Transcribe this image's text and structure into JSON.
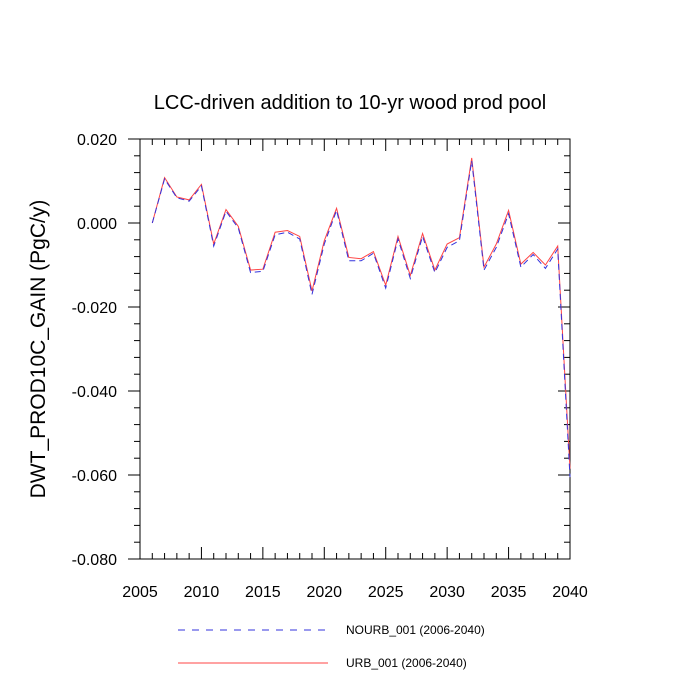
{
  "chart_data": {
    "type": "line",
    "title": "LCC-driven addition to 10-yr wood prod pool",
    "xlabel": "",
    "ylabel": "DWT_PROD10C_GAIN  (PgC/y)",
    "xlim": [
      2005,
      2040
    ],
    "ylim": [
      -0.08,
      0.02
    ],
    "x_ticks": [
      2005,
      2010,
      2015,
      2020,
      2025,
      2030,
      2035,
      2040
    ],
    "y_ticks": [
      -0.08,
      -0.06,
      -0.04,
      -0.02,
      0.0,
      0.02
    ],
    "x_tick_labels": [
      "2005",
      "2010",
      "2015",
      "2020",
      "2025",
      "2030",
      "2035",
      "2040"
    ],
    "y_tick_labels": [
      "-0.080",
      "-0.060",
      "-0.040",
      "-0.020",
      "0.000",
      "0.020"
    ],
    "grid": false,
    "legend_position": "bottom",
    "x": [
      2006,
      2007,
      2008,
      2009,
      2010,
      2011,
      2012,
      2013,
      2014,
      2015,
      2016,
      2017,
      2018,
      2019,
      2020,
      2021,
      2022,
      2023,
      2024,
      2025,
      2026,
      2027,
      2028,
      2029,
      2030,
      2031,
      2032,
      2033,
      2034,
      2035,
      2036,
      2037,
      2038,
      2039,
      2040
    ],
    "series": [
      {
        "name": "NOURB_001 (2006-2040)",
        "color": "#3333dd",
        "dash": "dashed",
        "values": [
          0.0,
          0.0105,
          0.006,
          0.0052,
          0.0088,
          -0.0055,
          0.0028,
          -0.0012,
          -0.0118,
          -0.0115,
          -0.0028,
          -0.0022,
          -0.0038,
          -0.017,
          -0.005,
          0.003,
          -0.009,
          -0.009,
          -0.0072,
          -0.0155,
          -0.0038,
          -0.0132,
          -0.0032,
          -0.0118,
          -0.0058,
          -0.0042,
          0.0148,
          -0.0112,
          -0.0058,
          0.0022,
          -0.0105,
          -0.0075,
          -0.0108,
          -0.0062,
          -0.0605
        ]
      },
      {
        "name": "URB_001 (2006-2040)",
        "color": "#ff4444",
        "dash": "solid",
        "values": [
          0.0,
          0.0108,
          0.0062,
          0.0055,
          0.0092,
          -0.005,
          0.0032,
          -0.0008,
          -0.0112,
          -0.011,
          -0.0022,
          -0.0018,
          -0.0032,
          -0.0162,
          -0.0042,
          0.0035,
          -0.0082,
          -0.0085,
          -0.0068,
          -0.0148,
          -0.0032,
          -0.0125,
          -0.0025,
          -0.0112,
          -0.005,
          -0.0035,
          0.0155,
          -0.0105,
          -0.005,
          0.003,
          -0.0098,
          -0.007,
          -0.01,
          -0.0055,
          -0.0585
        ]
      }
    ]
  }
}
